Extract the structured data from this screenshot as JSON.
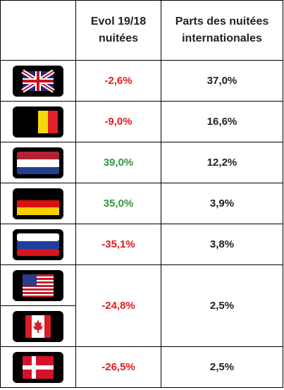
{
  "table": {
    "header": {
      "evol": [
        "Evol 19/18",
        "nuitées"
      ],
      "parts": [
        "Parts des nuitées",
        "internationales"
      ]
    },
    "rows": [
      {
        "evol": "-2,6%",
        "parts": "37,0%",
        "color": "#e3191c"
      },
      {
        "evol": "-9,0%",
        "parts": "16,6%",
        "color": "#e3191c"
      },
      {
        "evol": "39,0%",
        "parts": "12,2%",
        "color": "#2f9a3a"
      },
      {
        "evol": "35,0%",
        "parts": "3,9%",
        "color": "#2f9a3a"
      },
      {
        "evol": "-35,1%",
        "parts": "3,8%",
        "color": "#e3191c"
      },
      {
        "evol": "-24,8%",
        "parts": "2,5%",
        "color": "#e3191c"
      },
      {
        "evol": "-26,5%",
        "parts": "2,5%",
        "color": "#e3191c"
      }
    ]
  }
}
